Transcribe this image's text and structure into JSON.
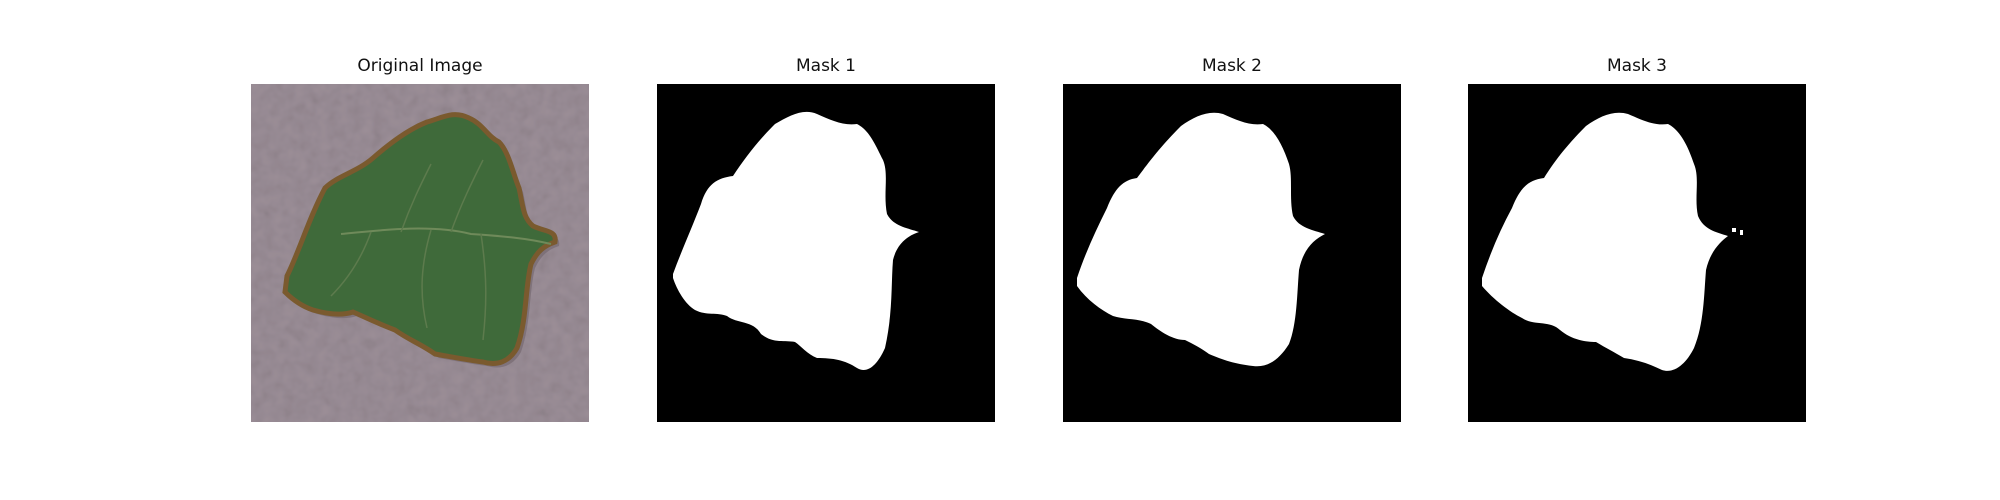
{
  "figure": {
    "panels": [
      {
        "title": "Original Image",
        "kind": "photo",
        "subject": "leaf-on-textured-background"
      },
      {
        "title": "Mask 1",
        "kind": "binary-mask"
      },
      {
        "title": "Mask 2",
        "kind": "binary-mask"
      },
      {
        "title": "Mask 3",
        "kind": "binary-mask"
      }
    ]
  },
  "colors": {
    "page_background": "#ffffff",
    "photo_background": "#9c8f98",
    "leaf_green": "#3f6a3a",
    "leaf_edge": "#7a5a2e",
    "mask_background": "#000000",
    "mask_foreground": "#ffffff"
  }
}
